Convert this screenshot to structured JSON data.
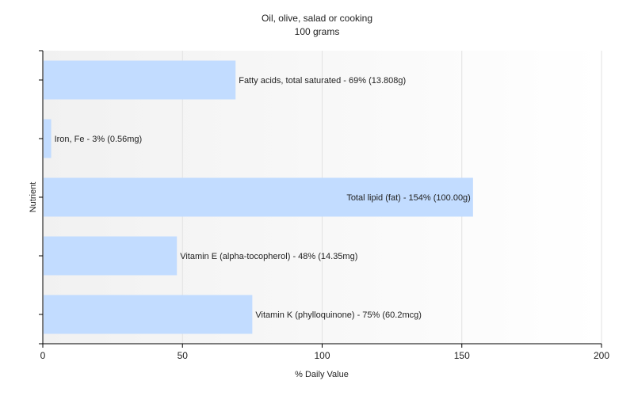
{
  "chart_data": {
    "type": "bar",
    "orientation": "horizontal",
    "title": "Oil, olive, salad or cooking",
    "subtitle": "100 grams",
    "xlabel": "% Daily Value",
    "ylabel": "Nutrient",
    "xlim": [
      0,
      200
    ],
    "xticks": [
      "0",
      "50",
      "100",
      "150",
      "200"
    ],
    "grid": true,
    "legend": "none",
    "bar_color": "#c2dcff",
    "categories": [
      "Fatty acids, total saturated",
      "Iron, Fe",
      "Total lipid (fat)",
      "Vitamin E (alpha-tocopherol)",
      "Vitamin K (phylloquinone)"
    ],
    "values": [
      69,
      3,
      154,
      48,
      75
    ],
    "data_labels": [
      "Fatty acids, total saturated - 69% (13.808g)",
      "Iron, Fe - 3% (0.56mg)",
      "Total lipid (fat) - 154% (100.00g)",
      "Vitamin E (alpha-tocopherol) - 48% (14.35mg)",
      "Vitamin K (phylloquinone) - 75% (60.2mcg)"
    ]
  }
}
